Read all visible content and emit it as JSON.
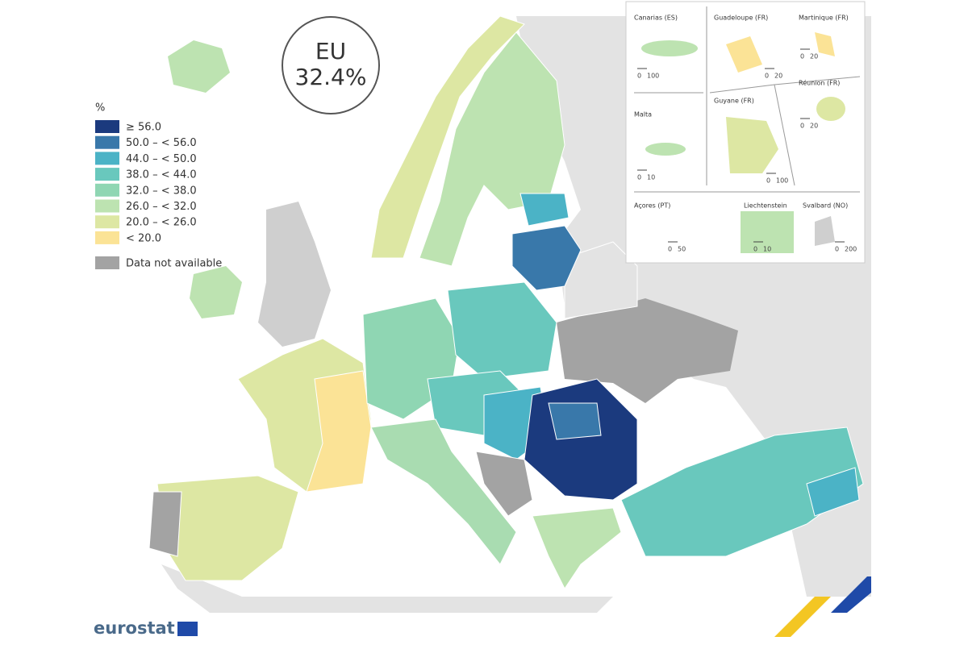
{
  "badge": {
    "line1": "EU",
    "line2": "32.4%"
  },
  "legend": {
    "title": "%",
    "items": [
      {
        "label": "≥ 56.0",
        "color": "#1b3a7e"
      },
      {
        "label": "50.0 – < 56.0",
        "color": "#3978aa"
      },
      {
        "label": "44.0 – < 50.0",
        "color": "#4bb3c6"
      },
      {
        "label": "38.0 – < 44.0",
        "color": "#69c8bd"
      },
      {
        "label": "32.0 – < 38.0",
        "color": "#8fd6b3"
      },
      {
        "label": "26.0 – < 32.0",
        "color": "#bde3b1"
      },
      {
        "label": "20.0 – < 26.0",
        "color": "#dde7a3"
      },
      {
        "label": "< 20.0",
        "color": "#fbe396"
      }
    ],
    "na": {
      "label": "Data not available",
      "color": "#a3a3a3"
    }
  },
  "insets": [
    {
      "label": "Canarias (ES)",
      "scale": [
        "0",
        "100"
      ]
    },
    {
      "label": "Guadeloupe (FR)",
      "scale": [
        "0",
        "20"
      ]
    },
    {
      "label": "Martinique (FR)",
      "scale": [
        "0",
        "20"
      ]
    },
    {
      "label": "Réunion (FR)",
      "scale": [
        "0",
        "20"
      ]
    },
    {
      "label": "Malta",
      "scale": [
        "0",
        "10"
      ]
    },
    {
      "label": "Guyane (FR)",
      "scale": [
        "0",
        "100"
      ]
    },
    {
      "label": "Açores (PT)",
      "scale": [
        "0",
        "50"
      ]
    },
    {
      "label": "Liechtenstein",
      "scale": [
        "0",
        "10"
      ]
    },
    {
      "label": "Svalbard (NO)",
      "scale": [
        "0",
        "200"
      ]
    }
  ],
  "footer": {
    "brand": "eurostat"
  }
}
